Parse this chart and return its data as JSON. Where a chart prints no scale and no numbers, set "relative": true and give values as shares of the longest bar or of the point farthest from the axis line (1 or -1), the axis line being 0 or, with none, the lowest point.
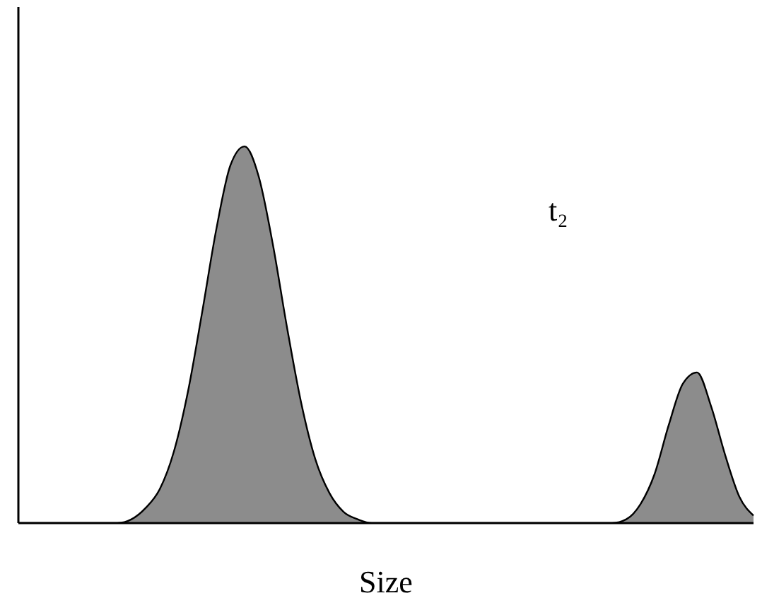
{
  "chart_data": {
    "type": "area",
    "relative": true,
    "xlabel": "Size",
    "annotations": [
      "t₂"
    ],
    "color": "#8c8c8c",
    "categories": [
      null,
      null,
      null,
      null,
      null,
      null,
      null,
      null,
      null,
      null,
      null,
      null,
      null,
      null,
      null,
      null,
      null,
      null,
      null,
      null,
      null,
      null,
      null,
      null,
      null,
      null,
      null,
      null,
      null,
      null,
      null,
      null,
      null,
      null,
      null,
      null,
      null,
      null,
      null,
      null,
      null,
      null,
      null,
      null,
      null,
      null,
      null,
      null,
      null,
      null,
      null,
      null,
      null
    ],
    "values": [
      0,
      0,
      0,
      0,
      0,
      0,
      0,
      0,
      0.01,
      0.04,
      0.09,
      0.19,
      0.35,
      0.56,
      0.78,
      0.95,
      1,
      0.92,
      0.74,
      0.52,
      0.32,
      0.17,
      0.08,
      0.03,
      0.01,
      0,
      0,
      0,
      0,
      0,
      0,
      0,
      0,
      0,
      0,
      0,
      0,
      0,
      0,
      0,
      0,
      0,
      0,
      0.01,
      0.05,
      0.13,
      0.26,
      0.37,
      0.4,
      0.31,
      0.18,
      0.07,
      0.02
    ]
  }
}
